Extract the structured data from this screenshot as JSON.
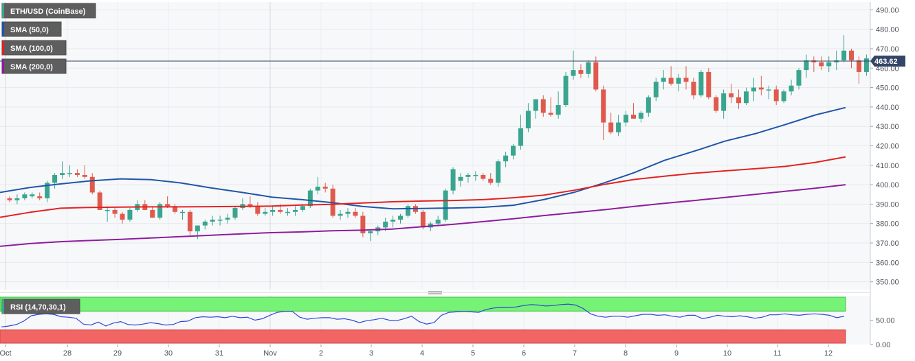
{
  "colors": {
    "up": "#3aa58f",
    "down": "#df5a4d",
    "sma50": "#1f56a8",
    "sma100": "#e42121",
    "sma200": "#8e1c9d",
    "rsi_line": "#2d47d6",
    "rsi_upper_band": "#76f276",
    "rsi_lower_band": "#f26565",
    "last_price_bg": "#34456a",
    "legend_bg": "#5e5e5e"
  },
  "chart_data": [
    {
      "type": "candlestick",
      "title": "ETH/USD (CoinBase)",
      "ylim": [
        346,
        494
      ],
      "ticks": [
        "490.00",
        "480.00",
        "470.00",
        "460.00",
        "450.00",
        "440.00",
        "430.00",
        "420.00",
        "410.00",
        "400.00",
        "390.00",
        "380.00",
        "370.00",
        "360.00",
        "350.00"
      ],
      "x_labels": [
        "Oct",
        "28",
        "29",
        "30",
        "31",
        "Nov",
        "2",
        "3",
        "4",
        "5",
        "6",
        "7",
        "8",
        "9",
        "10",
        "11",
        "12"
      ],
      "last_price": "463.62",
      "last_value": 463.62,
      "grid": true,
      "candles": [
        [
          393,
          394,
          391,
          392
        ],
        [
          392,
          395,
          390,
          393
        ],
        [
          393,
          396,
          392,
          395
        ],
        [
          394,
          396,
          393,
          395
        ],
        [
          394,
          396,
          392,
          393
        ],
        [
          393,
          402,
          391,
          401
        ],
        [
          401,
          406,
          398,
          405
        ],
        [
          405,
          412,
          403,
          406
        ],
        [
          406,
          410,
          404,
          406
        ],
        [
          406,
          408,
          404,
          405
        ],
        [
          405,
          410,
          403,
          404
        ],
        [
          404,
          406,
          395,
          396
        ],
        [
          396,
          397,
          387,
          387
        ],
        [
          387,
          389,
          381,
          387
        ],
        [
          387,
          388,
          383,
          385
        ],
        [
          385,
          386,
          380,
          382
        ],
        [
          382,
          388,
          381,
          387
        ],
        [
          387,
          392,
          386,
          390
        ],
        [
          390,
          392,
          387,
          387
        ],
        [
          387,
          389,
          383,
          383
        ],
        [
          383,
          391,
          382,
          390
        ],
        [
          390,
          394,
          388,
          389
        ],
        [
          389,
          390,
          385,
          386
        ],
        [
          386,
          387,
          382,
          386
        ],
        [
          386,
          387,
          374,
          376
        ],
        [
          376,
          379,
          372,
          379
        ],
        [
          379,
          382,
          377,
          381
        ],
        [
          381,
          384,
          379,
          382
        ],
        [
          382,
          384,
          379,
          382
        ],
        [
          382,
          385,
          380,
          383
        ],
        [
          383,
          389,
          382,
          388
        ],
        [
          388,
          393,
          387,
          390
        ],
        [
          390,
          394,
          388,
          389
        ],
        [
          389,
          391,
          384,
          385
        ],
        [
          385,
          388,
          384,
          386
        ],
        [
          386,
          389,
          384,
          387
        ],
        [
          387,
          390,
          385,
          386
        ],
        [
          386,
          388,
          384,
          386
        ],
        [
          386,
          389,
          384,
          387
        ],
        [
          387,
          390,
          386,
          389
        ],
        [
          389,
          398,
          388,
          397
        ],
        [
          397,
          404,
          395,
          399
        ],
        [
          399,
          401,
          396,
          398
        ],
        [
          398,
          400,
          383,
          384
        ],
        [
          384,
          387,
          382,
          385
        ],
        [
          385,
          388,
          383,
          386
        ],
        [
          386,
          388,
          383,
          384
        ],
        [
          384,
          386,
          373,
          375
        ],
        [
          375,
          377,
          371,
          376
        ],
        [
          376,
          379,
          374,
          378
        ],
        [
          378,
          383,
          376,
          381
        ],
        [
          381,
          384,
          378,
          382
        ],
        [
          382,
          385,
          380,
          384
        ],
        [
          384,
          390,
          383,
          389
        ],
        [
          389,
          390,
          385,
          386
        ],
        [
          386,
          387,
          377,
          378
        ],
        [
          378,
          381,
          376,
          380
        ],
        [
          380,
          384,
          379,
          382
        ],
        [
          382,
          398,
          381,
          397
        ],
        [
          397,
          409,
          395,
          408
        ],
        [
          402,
          406,
          399,
          404
        ],
        [
          404,
          406,
          401,
          405
        ],
        [
          405,
          407,
          402,
          405
        ],
        [
          405,
          406,
          402,
          403
        ],
        [
          403,
          406,
          400,
          401
        ],
        [
          401,
          413,
          399,
          412
        ],
        [
          412,
          417,
          409,
          415
        ],
        [
          415,
          421,
          413,
          420
        ],
        [
          420,
          436,
          418,
          429
        ],
        [
          429,
          442,
          427,
          438
        ],
        [
          438,
          443,
          434,
          444
        ],
        [
          444,
          446,
          435,
          437
        ],
        [
          437,
          445,
          435,
          436
        ],
        [
          436,
          448,
          434,
          441
        ],
        [
          441,
          458,
          440,
          456
        ],
        [
          456,
          469,
          454,
          459
        ],
        [
          459,
          462,
          455,
          457
        ],
        [
          457,
          464,
          455,
          463
        ],
        [
          463,
          466,
          448,
          449
        ],
        [
          449,
          451,
          423,
          432
        ],
        [
          432,
          437,
          426,
          427
        ],
        [
          427,
          436,
          425,
          432
        ],
        [
          432,
          438,
          430,
          436
        ],
        [
          436,
          442,
          434,
          434
        ],
        [
          434,
          438,
          432,
          437
        ],
        [
          437,
          446,
          435,
          445
        ],
        [
          445,
          455,
          443,
          453
        ],
        [
          453,
          459,
          449,
          455
        ],
        [
          455,
          461,
          451,
          452
        ],
        [
          452,
          457,
          448,
          455
        ],
        [
          455,
          461,
          449,
          453
        ],
        [
          453,
          455,
          444,
          446
        ],
        [
          446,
          459,
          445,
          458
        ],
        [
          458,
          460,
          444,
          445
        ],
        [
          445,
          446,
          437,
          438
        ],
        [
          438,
          449,
          434,
          447
        ],
        [
          447,
          452,
          442,
          445
        ],
        [
          445,
          449,
          439,
          442
        ],
        [
          442,
          450,
          441,
          448
        ],
        [
          448,
          455,
          443,
          450
        ],
        [
          450,
          456,
          446,
          449
        ],
        [
          449,
          451,
          444,
          449
        ],
        [
          449,
          451,
          441,
          443
        ],
        [
          443,
          449,
          442,
          448
        ],
        [
          448,
          454,
          446,
          451
        ],
        [
          451,
          460,
          449,
          459
        ],
        [
          459,
          467,
          455,
          464
        ],
        [
          464,
          466,
          458,
          463
        ],
        [
          463,
          466,
          459,
          461
        ],
        [
          461,
          466,
          458,
          463
        ],
        [
          463,
          469,
          459,
          464
        ],
        [
          464,
          477,
          463,
          469
        ],
        [
          469,
          470,
          460,
          464
        ],
        [
          464,
          466,
          452,
          458
        ],
        [
          458,
          467,
          456,
          465
        ],
        [
          465,
          466,
          462,
          463.62
        ]
      ],
      "series": [
        {
          "name": "SMA (50,0)",
          "values": [
            396,
            398.6,
            400.4,
            402,
            403,
            402.6,
            400.9,
            398.3,
            396.1,
            393.6,
            392.3,
            390.8,
            388.8,
            387.6,
            387.8,
            388,
            388.4,
            389.4,
            392.3,
            396,
            400.9,
            406.2,
            412.5,
            417.3,
            422.4,
            426.2,
            430.9,
            435.9,
            439.7
          ]
        },
        {
          "name": "SMA (100,0)",
          "values": [
            383.2,
            385.8,
            387.9,
            388.3,
            388.5,
            388.6,
            388.6,
            388.7,
            388.8,
            389,
            389.5,
            389.9,
            390.6,
            391.2,
            391.6,
            391.9,
            392.3,
            393.3,
            394.6,
            397.1,
            400.1,
            402.7,
            404.4,
            405.9,
            407.1,
            408.2,
            409.4,
            411.5,
            414.3
          ]
        },
        {
          "name": "SMA (200,0)",
          "values": [
            368.3,
            369.7,
            370.7,
            371.3,
            371.9,
            372.6,
            373.3,
            374,
            374.7,
            375.3,
            375.7,
            376.3,
            376.6,
            377.2,
            378.4,
            379.6,
            381,
            382.5,
            384.1,
            385.6,
            387.1,
            388.8,
            390.4,
            391.9,
            393.4,
            395,
            396.6,
            398.2,
            400
          ]
        }
      ]
    },
    {
      "type": "line",
      "title": "RSI (14,70,30,1)",
      "ylim": [
        0,
        100
      ],
      "ticks": [
        "50.00",
        "0.00"
      ],
      "series": [
        {
          "name": "RSI (14,70,30,1)",
          "values": [
            36,
            38,
            41,
            48,
            59,
            62,
            63,
            62,
            57,
            56,
            54,
            42,
            40,
            46,
            38,
            44,
            47,
            41,
            40,
            42,
            45,
            43,
            40,
            41,
            47,
            48,
            55,
            57,
            56,
            57,
            55,
            58,
            55,
            56,
            50,
            53,
            60,
            66,
            68,
            68,
            56,
            52,
            54,
            55,
            55,
            52,
            53,
            50,
            45,
            49,
            51,
            54,
            50,
            49,
            53,
            58,
            47,
            42,
            45,
            60,
            66,
            67,
            68,
            67,
            66,
            72,
            75,
            76,
            76,
            77,
            80,
            82,
            81,
            79,
            80,
            82,
            83,
            81,
            74,
            63,
            58,
            56,
            58,
            58,
            56,
            59,
            62,
            62,
            60,
            61,
            58,
            56,
            60,
            60,
            53,
            56,
            60,
            58,
            57,
            59,
            57,
            54,
            56,
            61,
            61,
            63,
            61,
            60,
            62,
            63,
            62,
            60,
            55,
            58
          ]
        }
      ]
    }
  ]
}
